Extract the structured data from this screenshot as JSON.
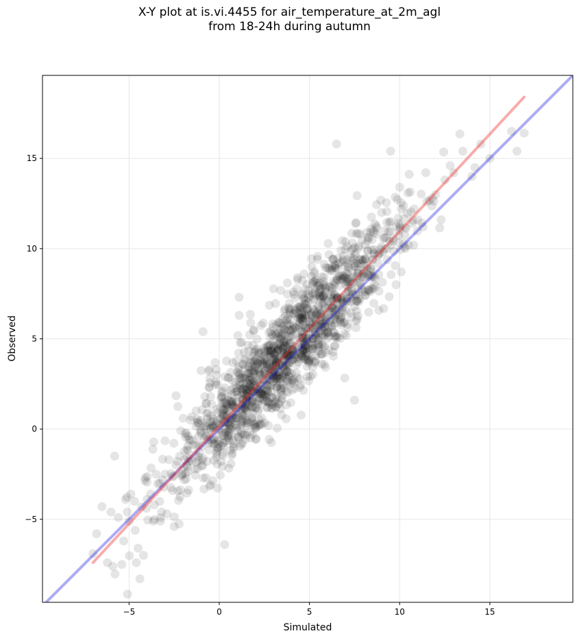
{
  "chart_data": {
    "type": "scatter",
    "title_lines": [
      "X-Y plot at is.vi.4455 for air_temperature_at_2m_agl",
      "from 18-24h during autumn"
    ],
    "xlabel": "Simulated",
    "ylabel": "Observed",
    "xlim": [
      -9.8,
      19.6
    ],
    "ylim": [
      -9.6,
      19.6
    ],
    "x_ticks": [
      -5,
      0,
      5,
      10,
      15
    ],
    "y_ticks": [
      -5,
      0,
      5,
      10,
      15
    ],
    "tick_labels_x": [
      "−5",
      "0",
      "5",
      "10",
      "15"
    ],
    "tick_labels_y": [
      "−5",
      "0",
      "5",
      "10",
      "15"
    ],
    "grid": true,
    "legend": "none",
    "point_color": "#000000",
    "point_alpha": 0.1,
    "reference_line": {
      "color": "#0000dd",
      "alpha": 0.33,
      "x": [
        -9.8,
        19.6
      ],
      "y": [
        -9.8,
        19.6
      ]
    },
    "fit_line": {
      "color": "#ee2222",
      "alpha": 0.38,
      "x": [
        -7.0,
        16.9
      ],
      "y": [
        -7.4,
        18.4
      ]
    },
    "points_summary": {
      "count": 1400,
      "center": [
        3.5,
        3.8
      ],
      "slope": 1.07,
      "spread": 1.4
    },
    "series": [
      {
        "x": [
          -7.0,
          -6.8,
          -6.5,
          -6.2,
          -6.0,
          -5.8,
          -5.6,
          -5.4,
          -5.3,
          -5.2,
          -5.1,
          -5.0,
          -4.9,
          -4.7,
          -4.6,
          -4.5,
          -4.4,
          -4.3,
          -4.2,
          -4.1,
          -4.0,
          -3.8,
          -3.6,
          -3.5,
          -3.3,
          -3.2,
          -3.0,
          -2.8,
          -2.6,
          -2.5,
          -2.4,
          -2.2,
          -2.1,
          -2.0,
          -1.8,
          -1.6,
          -1.5,
          -1.3,
          -1.1,
          -0.9,
          -0.8,
          -0.6,
          -0.5,
          -0.3,
          -0.2,
          0.0,
          0.2,
          0.3,
          0.5,
          0.6,
          0.8,
          1.0,
          1.1,
          1.3,
          1.5,
          1.7,
          1.8,
          2.0,
          2.2,
          2.4,
          2.6,
          2.8,
          3.0,
          3.2,
          3.4,
          3.6,
          3.8,
          4.0,
          4.2,
          4.4,
          4.6,
          4.8,
          5.0,
          5.2,
          5.4,
          5.6,
          5.8,
          6.0,
          6.2,
          6.4,
          6.5,
          6.8,
          7.0,
          7.2,
          7.5,
          7.8,
          8.0,
          8.3,
          8.5,
          8.8,
          9.0,
          9.3,
          9.5,
          9.8,
          10.0,
          10.3,
          10.5,
          10.8,
          11.0,
          11.3,
          11.5,
          11.8,
          12.0,
          12.3,
          12.5,
          12.8,
          13.0,
          13.5,
          14.0,
          14.5,
          15.0,
          16.2,
          16.5,
          16.9,
          6.5,
          7.5,
          -0.9,
          1.1,
          4.7,
          9.5
        ],
        "y": [
          -6.9,
          -5.8,
          -4.3,
          -7.4,
          -4.6,
          -1.5,
          -4.9,
          -7.5,
          -6.2,
          -3.9,
          -4.6,
          -5.1,
          -3.6,
          -4.0,
          -7.4,
          -6.6,
          -8.3,
          -4.3,
          -7.0,
          -2.7,
          -3.9,
          -3.6,
          -4.2,
          -2.5,
          -3.0,
          -4.6,
          -2.5,
          -1.7,
          -3.4,
          -5.4,
          -2.0,
          -1.5,
          -2.6,
          0.6,
          -2.0,
          0.5,
          -0.6,
          -1.4,
          -1.3,
          -1.6,
          1.8,
          -0.3,
          0.0,
          -0.6,
          2.6,
          0.0,
          -0.8,
          -6.4,
          1.8,
          0.0,
          0.6,
          0.8,
          6.3,
          3.6,
          1.0,
          2.4,
          0.6,
          4.4,
          2.2,
          3.6,
          2.8,
          3.4,
          3.2,
          4.6,
          2.8,
          3.8,
          4.2,
          4.4,
          5.6,
          4.0,
          5.2,
          5.6,
          4.4,
          5.0,
          6.3,
          5.8,
          7.0,
          5.4,
          7.4,
          6.2,
          7.2,
          6.6,
          8.0,
          7.6,
          6.8,
          9.2,
          8.8,
          10.6,
          9.4,
          9.2,
          12.0,
          10.0,
          11.5,
          8.0,
          13.4,
          11.2,
          10.2,
          12.2,
          11.6,
          11.2,
          12.6,
          12.8,
          13.0,
          11.6,
          13.8,
          14.6,
          14.2,
          15.4,
          14.0,
          15.8,
          15.0,
          16.5,
          15.4,
          16.4,
          15.8,
          1.6,
          5.4,
          7.3,
          8.6,
          15.4
        ]
      }
    ]
  }
}
